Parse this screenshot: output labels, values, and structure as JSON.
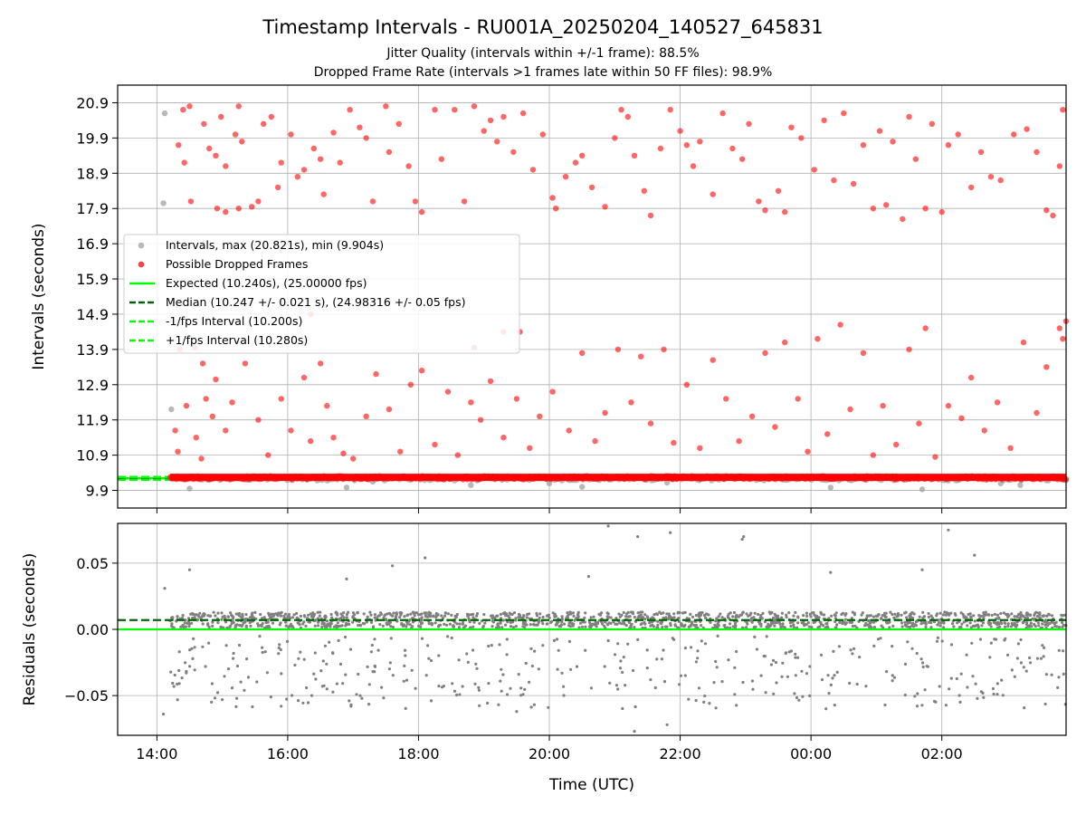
{
  "figure": {
    "title": "Timestamp Intervals - RU001A_20250204_140527_645831",
    "subtitle1": "Jitter Quality (intervals within +/-1 frame): 88.5%",
    "subtitle2": "Dropped Frame Rate (intervals >1 frames late within 50 FF files): 98.9%"
  },
  "chart_data": [
    {
      "type": "scatter",
      "panel": "top",
      "ylabel": "Intervals (seconds)",
      "x_unit": "hours since 00:00 UTC on start day",
      "xlim": [
        13.4,
        27.9
      ],
      "ylim": [
        9.4,
        21.4
      ],
      "yticks": [
        9.9,
        10.9,
        11.9,
        12.9,
        13.9,
        14.9,
        15.9,
        16.9,
        17.9,
        18.9,
        19.9,
        20.9
      ],
      "ytick_labels": [
        "9.9",
        "10.9",
        "11.9",
        "12.9",
        "13.9",
        "14.9",
        "15.9",
        "16.9",
        "17.9",
        "18.9",
        "19.9",
        "20.9"
      ],
      "grid": true,
      "legend_position": "center-left",
      "series": [
        {
          "name": "Intervals, max (20.821s), min (9.904s)",
          "color": "#a0a0a0",
          "baseline": 10.24,
          "points": [
            [
              14.12,
              20.6
            ],
            [
              14.1,
              18.05
            ],
            [
              14.22,
              12.2
            ],
            [
              14.5,
              9.95
            ],
            [
              16.3,
              10.2
            ],
            [
              16.9,
              9.98
            ],
            [
              17.3,
              10.15
            ],
            [
              18.8,
              10.05
            ],
            [
              20.0,
              10.1
            ],
            [
              20.5,
              10.0
            ],
            [
              21.8,
              10.12
            ],
            [
              24.3,
              9.98
            ],
            [
              25.7,
              9.93
            ],
            [
              26.1,
              10.18
            ],
            [
              26.9,
              10.1
            ],
            [
              27.2,
              10.05
            ]
          ]
        },
        {
          "name": "Possible Dropped Frames",
          "color": "#ff0000",
          "baseline": 10.24,
          "points": [
            [
              14.4,
              20.7
            ],
            [
              14.5,
              20.8
            ],
            [
              14.33,
              19.7
            ],
            [
              14.42,
              19.2
            ],
            [
              14.52,
              18.1
            ],
            [
              14.72,
              20.3
            ],
            [
              14.8,
              19.6
            ],
            [
              14.9,
              19.4
            ],
            [
              14.98,
              20.5
            ],
            [
              15.05,
              19.1
            ],
            [
              15.2,
              20.0
            ],
            [
              15.25,
              20.8
            ],
            [
              15.3,
              19.8
            ],
            [
              15.05,
              17.8
            ],
            [
              15.25,
              17.9
            ],
            [
              14.92,
              17.9
            ],
            [
              15.45,
              17.95
            ],
            [
              15.55,
              18.1
            ],
            [
              15.63,
              20.3
            ],
            [
              15.75,
              20.5
            ],
            [
              15.85,
              18.5
            ],
            [
              15.9,
              19.2
            ],
            [
              16.05,
              20.0
            ],
            [
              16.15,
              18.8
            ],
            [
              16.25,
              19.0
            ],
            [
              16.4,
              19.6
            ],
            [
              16.5,
              19.3
            ],
            [
              16.55,
              18.3
            ],
            [
              16.7,
              20.05
            ],
            [
              16.8,
              19.2
            ],
            [
              16.95,
              20.7
            ],
            [
              17.1,
              20.2
            ],
            [
              17.2,
              19.9
            ],
            [
              17.3,
              18.1
            ],
            [
              17.5,
              20.8
            ],
            [
              17.55,
              19.5
            ],
            [
              17.7,
              20.3
            ],
            [
              17.85,
              19.1
            ],
            [
              17.95,
              18.1
            ],
            [
              18.05,
              17.8
            ],
            [
              18.25,
              20.7
            ],
            [
              18.35,
              19.3
            ],
            [
              18.55,
              20.7
            ],
            [
              18.7,
              18.1
            ],
            [
              18.85,
              20.8
            ],
            [
              19.0,
              20.1
            ],
            [
              19.1,
              20.4
            ],
            [
              19.2,
              19.8
            ],
            [
              19.3,
              20.5
            ],
            [
              19.45,
              19.5
            ],
            [
              19.6,
              20.6
            ],
            [
              19.75,
              19.0
            ],
            [
              19.9,
              20.0
            ],
            [
              20.05,
              18.2
            ],
            [
              20.1,
              17.9
            ],
            [
              20.25,
              18.8
            ],
            [
              20.4,
              19.2
            ],
            [
              20.5,
              19.4
            ],
            [
              20.65,
              18.5
            ],
            [
              20.85,
              17.95
            ],
            [
              21.0,
              19.9
            ],
            [
              21.1,
              20.7
            ],
            [
              21.2,
              20.5
            ],
            [
              21.3,
              19.4
            ],
            [
              21.45,
              18.4
            ],
            [
              21.55,
              17.7
            ],
            [
              21.7,
              19.6
            ],
            [
              21.85,
              20.7
            ],
            [
              22.0,
              20.1
            ],
            [
              22.1,
              19.7
            ],
            [
              22.2,
              19.1
            ],
            [
              22.3,
              19.8
            ],
            [
              22.5,
              18.3
            ],
            [
              22.65,
              20.6
            ],
            [
              22.8,
              19.6
            ],
            [
              22.95,
              19.3
            ],
            [
              23.05,
              20.3
            ],
            [
              23.2,
              18.1
            ],
            [
              23.3,
              17.85
            ],
            [
              23.5,
              18.4
            ],
            [
              23.6,
              17.8
            ],
            [
              23.7,
              20.2
            ],
            [
              23.85,
              19.9
            ],
            [
              24.05,
              19.0
            ],
            [
              24.2,
              20.4
            ],
            [
              24.35,
              18.7
            ],
            [
              24.5,
              20.6
            ],
            [
              24.65,
              18.6
            ],
            [
              24.8,
              19.7
            ],
            [
              24.95,
              17.9
            ],
            [
              25.05,
              20.1
            ],
            [
              25.15,
              18.0
            ],
            [
              25.25,
              19.8
            ],
            [
              25.4,
              17.6
            ],
            [
              25.5,
              20.5
            ],
            [
              25.6,
              19.3
            ],
            [
              25.75,
              17.9
            ],
            [
              25.85,
              20.3
            ],
            [
              26.0,
              17.8
            ],
            [
              26.1,
              19.7
            ],
            [
              26.25,
              20.0
            ],
            [
              26.45,
              18.5
            ],
            [
              26.6,
              19.5
            ],
            [
              26.75,
              18.8
            ],
            [
              26.9,
              18.7
            ],
            [
              27.1,
              20.0
            ],
            [
              27.3,
              20.15
            ],
            [
              27.45,
              19.5
            ],
            [
              27.6,
              17.85
            ],
            [
              27.7,
              17.7
            ],
            [
              27.8,
              19.1
            ],
            [
              27.85,
              20.7
            ],
            [
              14.28,
              11.6
            ],
            [
              14.32,
              11.0
            ],
            [
              14.45,
              12.3
            ],
            [
              14.6,
              11.4
            ],
            [
              14.68,
              10.8
            ],
            [
              14.75,
              12.5
            ],
            [
              14.85,
              12.0
            ],
            [
              14.9,
              13.05
            ],
            [
              15.05,
              11.6
            ],
            [
              15.15,
              12.4
            ],
            [
              15.35,
              13.5
            ],
            [
              15.55,
              11.9
            ],
            [
              15.7,
              10.9
            ],
            [
              15.9,
              12.5
            ],
            [
              16.05,
              11.6
            ],
            [
              16.25,
              13.1
            ],
            [
              16.35,
              11.3
            ],
            [
              16.5,
              13.5
            ],
            [
              16.6,
              12.3
            ],
            [
              16.7,
              11.4
            ],
            [
              16.85,
              10.95
            ],
            [
              17.0,
              10.8
            ],
            [
              17.2,
              12.0
            ],
            [
              17.35,
              13.2
            ],
            [
              17.55,
              12.2
            ],
            [
              17.72,
              11.0
            ],
            [
              17.88,
              12.9
            ],
            [
              18.05,
              13.3
            ],
            [
              18.25,
              11.2
            ],
            [
              18.45,
              12.7
            ],
            [
              18.6,
              10.9
            ],
            [
              18.8,
              12.4
            ],
            [
              18.95,
              11.9
            ],
            [
              19.1,
              13.0
            ],
            [
              19.3,
              11.4
            ],
            [
              19.5,
              12.5
            ],
            [
              19.7,
              11.1
            ],
            [
              19.85,
              12.0
            ],
            [
              20.05,
              12.7
            ],
            [
              20.3,
              11.6
            ],
            [
              20.5,
              13.8
            ],
            [
              20.7,
              11.3
            ],
            [
              20.85,
              12.1
            ],
            [
              21.05,
              13.9
            ],
            [
              21.25,
              12.4
            ],
            [
              21.4,
              13.7
            ],
            [
              21.55,
              11.8
            ],
            [
              21.75,
              13.9
            ],
            [
              21.9,
              11.25
            ],
            [
              22.1,
              12.9
            ],
            [
              22.3,
              11.1
            ],
            [
              22.5,
              13.6
            ],
            [
              22.7,
              12.5
            ],
            [
              22.9,
              11.3
            ],
            [
              23.1,
              12.0
            ],
            [
              23.3,
              13.8
            ],
            [
              23.45,
              11.7
            ],
            [
              23.6,
              14.1
            ],
            [
              23.8,
              12.5
            ],
            [
              23.95,
              11.0
            ],
            [
              24.1,
              14.2
            ],
            [
              24.25,
              11.5
            ],
            [
              24.45,
              14.6
            ],
            [
              24.6,
              12.2
            ],
            [
              24.8,
              13.8
            ],
            [
              24.95,
              10.9
            ],
            [
              25.1,
              12.3
            ],
            [
              25.3,
              11.2
            ],
            [
              25.5,
              13.9
            ],
            [
              25.65,
              11.8
            ],
            [
              25.75,
              14.5
            ],
            [
              25.9,
              10.85
            ],
            [
              26.1,
              12.3
            ],
            [
              26.3,
              11.95
            ],
            [
              26.45,
              13.1
            ],
            [
              26.65,
              11.6
            ],
            [
              26.85,
              12.4
            ],
            [
              27.05,
              11.1
            ],
            [
              27.25,
              14.1
            ],
            [
              27.45,
              12.1
            ],
            [
              27.6,
              13.4
            ],
            [
              27.8,
              14.5
            ],
            [
              27.9,
              14.7
            ],
            [
              27.85,
              14.2
            ],
            [
              14.35,
              13.9
            ],
            [
              14.58,
              13.95
            ],
            [
              14.7,
              13.5
            ],
            [
              16.35,
              14.9
            ],
            [
              18.85,
              13.95
            ],
            [
              19.3,
              14.4
            ],
            [
              19.55,
              14.4
            ]
          ]
        }
      ],
      "lines": [
        {
          "name": "Expected (10.240s), (25.00000 fps)",
          "y": 10.24,
          "color": "#00ff00",
          "style": "solid"
        },
        {
          "name": "Median (10.247 +/- 0.021 s), (24.98316 +/- 0.05 fps)",
          "y": 10.247,
          "color": "#006400",
          "style": "dashed"
        },
        {
          "name": "-1/fps Interval (10.200s)",
          "y": 10.2,
          "color": "#00ff00",
          "style": "dashed"
        },
        {
          "name": "+1/fps Interval (10.280s)",
          "y": 10.28,
          "color": "#00ff00",
          "style": "dashed"
        }
      ]
    },
    {
      "type": "scatter",
      "panel": "bottom",
      "ylabel": "Residuals (seconds)",
      "xlabel": "Time (UTC)",
      "xlim": [
        13.4,
        27.9
      ],
      "ylim": [
        -0.08,
        0.08
      ],
      "yticks": [
        -0.05,
        0.0,
        0.05
      ],
      "ytick_labels": [
        "−0.05",
        "0.00",
        "0.05"
      ],
      "grid": true,
      "xticks": [
        14,
        16,
        18,
        20,
        22,
        24,
        26
      ],
      "xtick_labels": [
        "14:00",
        "16:00",
        "18:00",
        "20:00",
        "22:00",
        "00:00",
        "02:00"
      ],
      "series": [
        {
          "name": "",
          "color": "#808080",
          "band_center": 0.007,
          "band_halfwidth": 0.006,
          "points": [
            [
              14.1,
              -0.064
            ],
            [
              14.12,
              0.031
            ],
            [
              14.5,
              0.045
            ],
            [
              15.9,
              -0.058
            ],
            [
              16.6,
              -0.045
            ],
            [
              16.9,
              0.038
            ],
            [
              17.6,
              0.048
            ],
            [
              18.1,
              0.054
            ],
            [
              19.5,
              -0.062
            ],
            [
              20.6,
              0.04
            ],
            [
              20.9,
              0.078
            ],
            [
              21.3,
              -0.077
            ],
            [
              21.35,
              0.07
            ],
            [
              21.8,
              -0.072
            ],
            [
              21.85,
              0.073
            ],
            [
              22.95,
              0.068
            ],
            [
              22.97,
              0.07
            ],
            [
              24.3,
              0.043
            ],
            [
              25.7,
              0.045
            ],
            [
              26.1,
              0.075
            ],
            [
              26.5,
              0.056
            ]
          ]
        }
      ],
      "lines": [
        {
          "name": "",
          "y": 0.0,
          "color": "#00ff00",
          "style": "solid"
        },
        {
          "name": "",
          "y": 0.007,
          "color": "#006400",
          "style": "dashed"
        }
      ]
    }
  ]
}
